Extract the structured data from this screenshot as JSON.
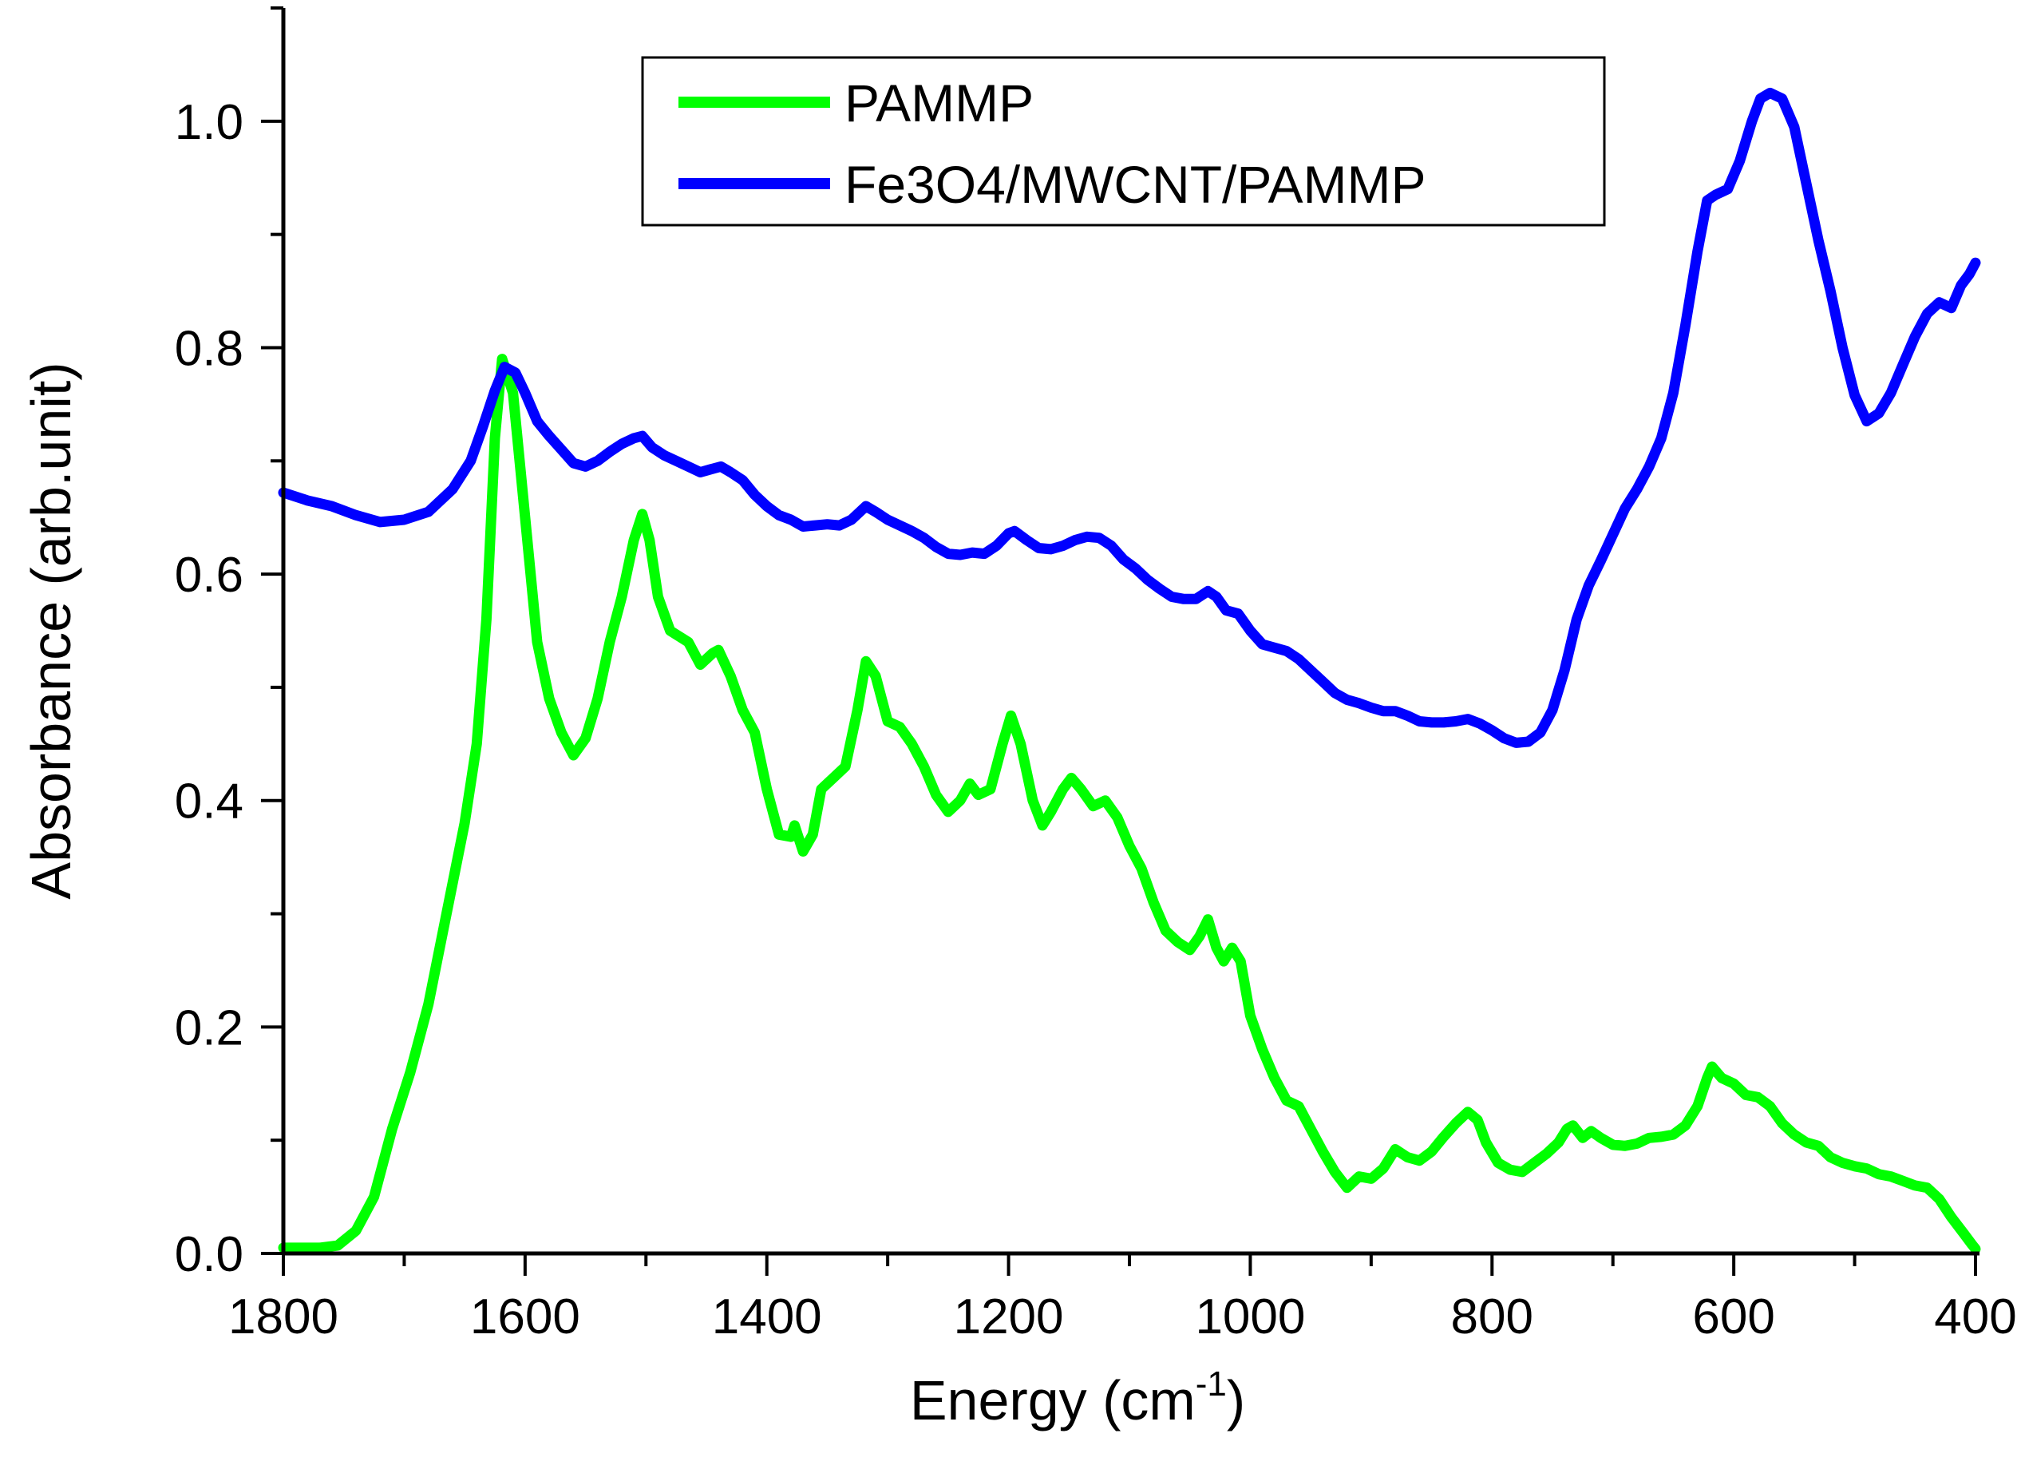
{
  "chart_data": {
    "type": "line",
    "title": "",
    "xlabel": "Energy (cm",
    "xlabel_superscript": "-1",
    "xlabel_suffix": ")",
    "ylabel": "Absorbance (arb.unit)",
    "xlim": [
      1800,
      400
    ],
    "ylim": [
      0,
      1.1
    ],
    "x_ticks": [
      1800,
      1600,
      1400,
      1200,
      1000,
      800,
      600,
      400
    ],
    "x_tick_labels": [
      "1800",
      "1600",
      "1400",
      "1200",
      "1000",
      "800",
      "600",
      "400"
    ],
    "y_ticks": [
      0.0,
      0.2,
      0.4,
      0.6,
      0.8,
      1.0
    ],
    "y_tick_labels": [
      "0.0",
      "0.2",
      "0.4",
      "0.6",
      "0.8",
      "1.0"
    ],
    "grid": false,
    "legend_position": "top-center",
    "series": [
      {
        "name": "PAMMP",
        "color": "#00ff00",
        "points": [
          [
            1800,
            0.005
          ],
          [
            1770,
            0.005
          ],
          [
            1755,
            0.007
          ],
          [
            1740,
            0.02
          ],
          [
            1725,
            0.05
          ],
          [
            1710,
            0.11
          ],
          [
            1695,
            0.16
          ],
          [
            1680,
            0.22
          ],
          [
            1665,
            0.3
          ],
          [
            1650,
            0.38
          ],
          [
            1640,
            0.45
          ],
          [
            1632,
            0.56
          ],
          [
            1625,
            0.72
          ],
          [
            1619,
            0.79
          ],
          [
            1610,
            0.76
          ],
          [
            1600,
            0.65
          ],
          [
            1590,
            0.54
          ],
          [
            1580,
            0.49
          ],
          [
            1570,
            0.46
          ],
          [
            1560,
            0.44
          ],
          [
            1550,
            0.455
          ],
          [
            1540,
            0.49
          ],
          [
            1530,
            0.54
          ],
          [
            1520,
            0.58
          ],
          [
            1510,
            0.63
          ],
          [
            1503,
            0.653
          ],
          [
            1497,
            0.63
          ],
          [
            1490,
            0.58
          ],
          [
            1480,
            0.55
          ],
          [
            1465,
            0.54
          ],
          [
            1455,
            0.52
          ],
          [
            1445,
            0.53
          ],
          [
            1440,
            0.533
          ],
          [
            1430,
            0.51
          ],
          [
            1420,
            0.48
          ],
          [
            1410,
            0.46
          ],
          [
            1400,
            0.41
          ],
          [
            1390,
            0.37
          ],
          [
            1380,
            0.368
          ],
          [
            1377,
            0.378
          ],
          [
            1370,
            0.355
          ],
          [
            1362,
            0.37
          ],
          [
            1355,
            0.41
          ],
          [
            1345,
            0.42
          ],
          [
            1335,
            0.43
          ],
          [
            1325,
            0.48
          ],
          [
            1318,
            0.523
          ],
          [
            1310,
            0.51
          ],
          [
            1300,
            0.47
          ],
          [
            1290,
            0.465
          ],
          [
            1280,
            0.45
          ],
          [
            1270,
            0.43
          ],
          [
            1260,
            0.405
          ],
          [
            1250,
            0.39
          ],
          [
            1240,
            0.4
          ],
          [
            1232,
            0.415
          ],
          [
            1225,
            0.405
          ],
          [
            1215,
            0.41
          ],
          [
            1205,
            0.45
          ],
          [
            1198,
            0.475
          ],
          [
            1190,
            0.45
          ],
          [
            1180,
            0.4
          ],
          [
            1172,
            0.378
          ],
          [
            1165,
            0.39
          ],
          [
            1155,
            0.41
          ],
          [
            1148,
            0.42
          ],
          [
            1140,
            0.41
          ],
          [
            1130,
            0.395
          ],
          [
            1120,
            0.4
          ],
          [
            1110,
            0.385
          ],
          [
            1100,
            0.36
          ],
          [
            1090,
            0.34
          ],
          [
            1080,
            0.31
          ],
          [
            1070,
            0.285
          ],
          [
            1060,
            0.275
          ],
          [
            1050,
            0.268
          ],
          [
            1042,
            0.28
          ],
          [
            1035,
            0.295
          ],
          [
            1028,
            0.27
          ],
          [
            1022,
            0.258
          ],
          [
            1015,
            0.27
          ],
          [
            1008,
            0.258
          ],
          [
            1000,
            0.21
          ],
          [
            990,
            0.18
          ],
          [
            980,
            0.155
          ],
          [
            970,
            0.135
          ],
          [
            960,
            0.13
          ],
          [
            950,
            0.11
          ],
          [
            940,
            0.09
          ],
          [
            930,
            0.072
          ],
          [
            920,
            0.058
          ],
          [
            910,
            0.068
          ],
          [
            900,
            0.066
          ],
          [
            890,
            0.075
          ],
          [
            880,
            0.092
          ],
          [
            870,
            0.085
          ],
          [
            860,
            0.082
          ],
          [
            850,
            0.09
          ],
          [
            840,
            0.103
          ],
          [
            830,
            0.115
          ],
          [
            820,
            0.125
          ],
          [
            812,
            0.118
          ],
          [
            805,
            0.098
          ],
          [
            795,
            0.08
          ],
          [
            785,
            0.074
          ],
          [
            775,
            0.072
          ],
          [
            765,
            0.08
          ],
          [
            755,
            0.088
          ],
          [
            745,
            0.098
          ],
          [
            738,
            0.11
          ],
          [
            733,
            0.113
          ],
          [
            725,
            0.102
          ],
          [
            718,
            0.108
          ],
          [
            710,
            0.102
          ],
          [
            700,
            0.096
          ],
          [
            690,
            0.095
          ],
          [
            680,
            0.097
          ],
          [
            670,
            0.102
          ],
          [
            660,
            0.103
          ],
          [
            650,
            0.105
          ],
          [
            640,
            0.113
          ],
          [
            630,
            0.13
          ],
          [
            622,
            0.155
          ],
          [
            618,
            0.165
          ],
          [
            610,
            0.155
          ],
          [
            600,
            0.15
          ],
          [
            590,
            0.14
          ],
          [
            580,
            0.138
          ],
          [
            570,
            0.13
          ],
          [
            560,
            0.115
          ],
          [
            550,
            0.105
          ],
          [
            540,
            0.098
          ],
          [
            530,
            0.095
          ],
          [
            520,
            0.085
          ],
          [
            510,
            0.08
          ],
          [
            500,
            0.077
          ],
          [
            490,
            0.075
          ],
          [
            480,
            0.07
          ],
          [
            470,
            0.068
          ],
          [
            460,
            0.064
          ],
          [
            450,
            0.06
          ],
          [
            440,
            0.058
          ],
          [
            430,
            0.048
          ],
          [
            420,
            0.032
          ],
          [
            410,
            0.018
          ],
          [
            403,
            0.008
          ],
          [
            400,
            0.004
          ]
        ]
      },
      {
        "name": "Fe3O4/MWCNT/PAMMP",
        "color": "#0000ff",
        "points": [
          [
            1800,
            0.672
          ],
          [
            1780,
            0.665
          ],
          [
            1760,
            0.66
          ],
          [
            1740,
            0.652
          ],
          [
            1720,
            0.646
          ],
          [
            1700,
            0.648
          ],
          [
            1680,
            0.655
          ],
          [
            1660,
            0.675
          ],
          [
            1645,
            0.7
          ],
          [
            1635,
            0.73
          ],
          [
            1625,
            0.762
          ],
          [
            1617,
            0.783
          ],
          [
            1608,
            0.778
          ],
          [
            1600,
            0.76
          ],
          [
            1590,
            0.735
          ],
          [
            1580,
            0.722
          ],
          [
            1570,
            0.71
          ],
          [
            1560,
            0.698
          ],
          [
            1550,
            0.695
          ],
          [
            1540,
            0.7
          ],
          [
            1530,
            0.708
          ],
          [
            1520,
            0.715
          ],
          [
            1510,
            0.72
          ],
          [
            1503,
            0.722
          ],
          [
            1495,
            0.712
          ],
          [
            1485,
            0.705
          ],
          [
            1475,
            0.7
          ],
          [
            1465,
            0.695
          ],
          [
            1455,
            0.69
          ],
          [
            1445,
            0.693
          ],
          [
            1438,
            0.695
          ],
          [
            1430,
            0.69
          ],
          [
            1420,
            0.683
          ],
          [
            1410,
            0.67
          ],
          [
            1400,
            0.66
          ],
          [
            1390,
            0.652
          ],
          [
            1380,
            0.648
          ],
          [
            1370,
            0.642
          ],
          [
            1360,
            0.643
          ],
          [
            1350,
            0.644
          ],
          [
            1340,
            0.643
          ],
          [
            1330,
            0.648
          ],
          [
            1318,
            0.66
          ],
          [
            1310,
            0.655
          ],
          [
            1300,
            0.648
          ],
          [
            1290,
            0.643
          ],
          [
            1280,
            0.638
          ],
          [
            1270,
            0.632
          ],
          [
            1260,
            0.624
          ],
          [
            1250,
            0.618
          ],
          [
            1240,
            0.617
          ],
          [
            1230,
            0.619
          ],
          [
            1220,
            0.618
          ],
          [
            1210,
            0.625
          ],
          [
            1200,
            0.636
          ],
          [
            1195,
            0.638
          ],
          [
            1185,
            0.63
          ],
          [
            1175,
            0.623
          ],
          [
            1165,
            0.622
          ],
          [
            1155,
            0.625
          ],
          [
            1145,
            0.63
          ],
          [
            1135,
            0.633
          ],
          [
            1125,
            0.632
          ],
          [
            1115,
            0.625
          ],
          [
            1105,
            0.613
          ],
          [
            1095,
            0.605
          ],
          [
            1085,
            0.595
          ],
          [
            1075,
            0.587
          ],
          [
            1065,
            0.58
          ],
          [
            1055,
            0.578
          ],
          [
            1045,
            0.578
          ],
          [
            1035,
            0.585
          ],
          [
            1028,
            0.58
          ],
          [
            1020,
            0.568
          ],
          [
            1010,
            0.565
          ],
          [
            1000,
            0.55
          ],
          [
            990,
            0.538
          ],
          [
            980,
            0.535
          ],
          [
            970,
            0.532
          ],
          [
            960,
            0.525
          ],
          [
            950,
            0.515
          ],
          [
            940,
            0.505
          ],
          [
            930,
            0.495
          ],
          [
            920,
            0.489
          ],
          [
            910,
            0.486
          ],
          [
            900,
            0.482
          ],
          [
            890,
            0.479
          ],
          [
            880,
            0.479
          ],
          [
            870,
            0.475
          ],
          [
            860,
            0.47
          ],
          [
            850,
            0.469
          ],
          [
            840,
            0.469
          ],
          [
            830,
            0.47
          ],
          [
            820,
            0.472
          ],
          [
            810,
            0.468
          ],
          [
            800,
            0.462
          ],
          [
            790,
            0.455
          ],
          [
            780,
            0.451
          ],
          [
            770,
            0.452
          ],
          [
            760,
            0.46
          ],
          [
            750,
            0.48
          ],
          [
            740,
            0.515
          ],
          [
            730,
            0.56
          ],
          [
            720,
            0.59
          ],
          [
            710,
            0.612
          ],
          [
            700,
            0.635
          ],
          [
            690,
            0.658
          ],
          [
            680,
            0.675
          ],
          [
            670,
            0.695
          ],
          [
            660,
            0.72
          ],
          [
            650,
            0.76
          ],
          [
            640,
            0.82
          ],
          [
            630,
            0.885
          ],
          [
            622,
            0.93
          ],
          [
            615,
            0.935
          ],
          [
            605,
            0.94
          ],
          [
            595,
            0.965
          ],
          [
            585,
            1.0
          ],
          [
            578,
            1.02
          ],
          [
            570,
            1.025
          ],
          [
            560,
            1.02
          ],
          [
            550,
            0.995
          ],
          [
            540,
            0.945
          ],
          [
            530,
            0.895
          ],
          [
            520,
            0.85
          ],
          [
            510,
            0.8
          ],
          [
            500,
            0.758
          ],
          [
            490,
            0.735
          ],
          [
            480,
            0.742
          ],
          [
            470,
            0.76
          ],
          [
            460,
            0.785
          ],
          [
            450,
            0.81
          ],
          [
            440,
            0.83
          ],
          [
            430,
            0.84
          ],
          [
            420,
            0.835
          ],
          [
            412,
            0.855
          ],
          [
            405,
            0.865
          ],
          [
            400,
            0.875
          ]
        ]
      }
    ]
  }
}
